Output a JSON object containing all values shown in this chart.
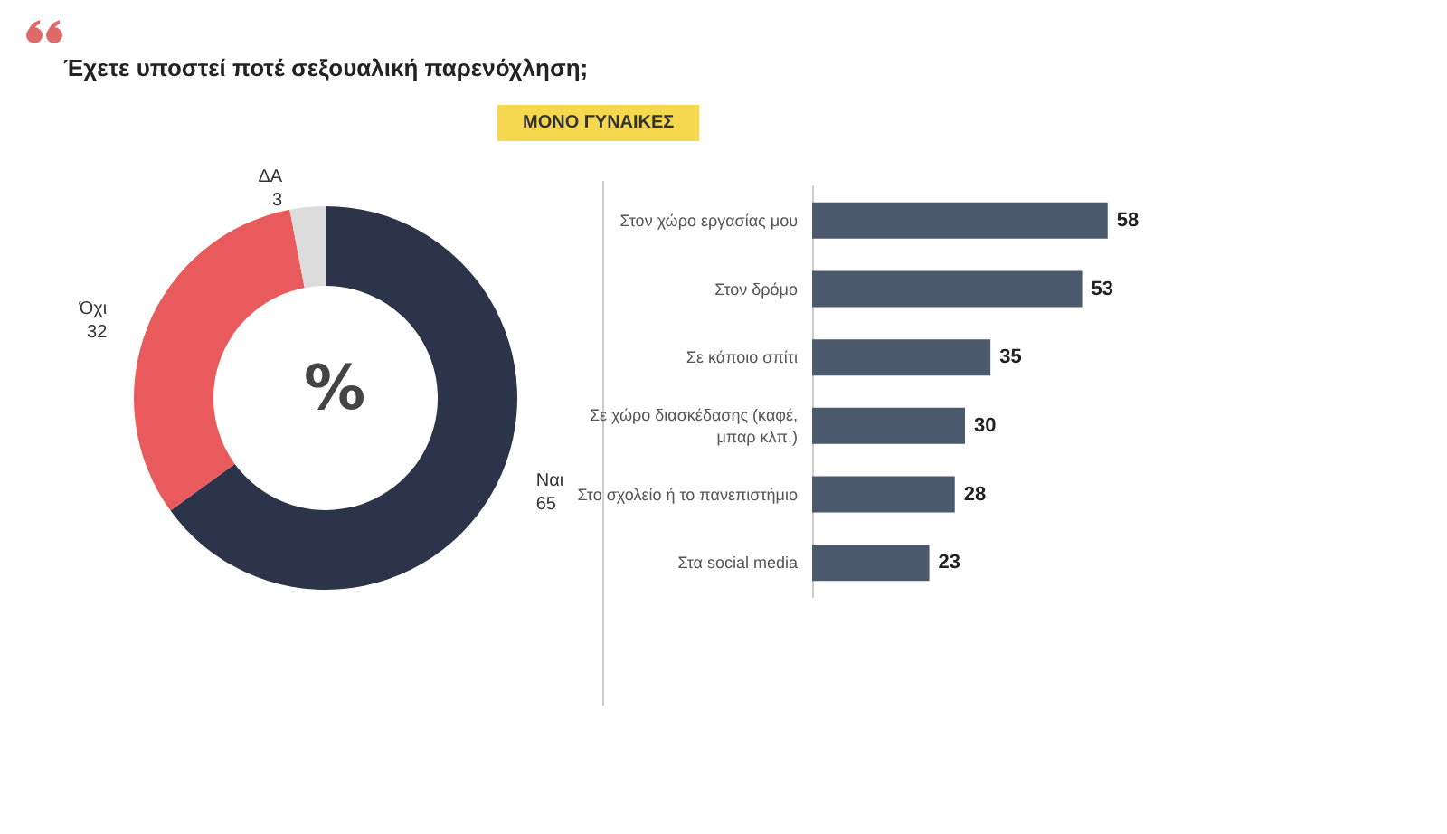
{
  "chart_data": [
    {
      "type": "donut",
      "title": "Έχετε υποστεί ποτέ σεξουαλική παρενόχληση;",
      "categories": [
        "Ναι",
        "Όχι",
        "ΔΑ"
      ],
      "values": [
        65,
        32,
        3
      ],
      "colors": [
        "#2b3449",
        "#e85a5c",
        "#dcdcdc"
      ],
      "data_labels": true,
      "legend": false,
      "annotations": [
        "%"
      ]
    },
    {
      "type": "bar",
      "orientation": "horizontal",
      "title": "ΜΟΝΟ ΓΥΝΑΙΚΕΣ",
      "categories": [
        "Στον χώρο εργασίας μου",
        "Στον δρόμο",
        "Σε κάποιο σπίτι",
        "Σε χώρο διασκέδασης (καφέ,\nμπαρ κλπ.)",
        "Στο σχολείο ή το πανεπιστήμιο",
        "Στα social media"
      ],
      "values": [
        58,
        53,
        35,
        30,
        28,
        23
      ],
      "color": "#4b596d",
      "data_labels": true,
      "legend": false
    }
  ]
}
